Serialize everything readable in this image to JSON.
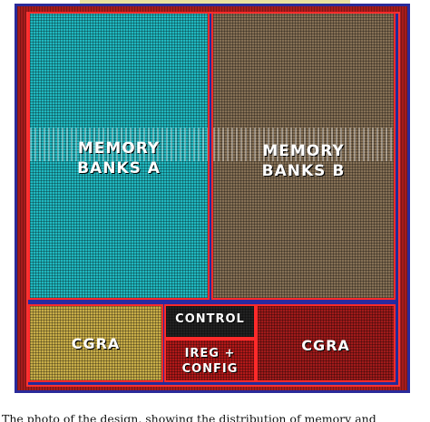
{
  "blocks": {
    "memory_a": "MEMORY\nBANKS A",
    "memory_b": "MEMORY\nBANKS B",
    "cgra_left": "CGRA",
    "control": "CONTROL",
    "ireg_config": "IREG +\nCONFIG",
    "cgra_right": "CGRA"
  },
  "caption": "The photo of the design, showing the distribution of memory and"
}
